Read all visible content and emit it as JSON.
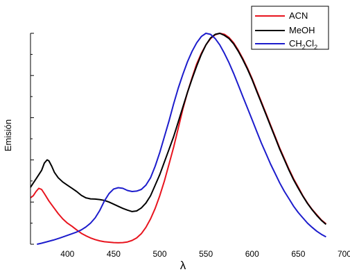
{
  "chart_data": {
    "type": "line",
    "xlabel": "λ",
    "ylabel": "Emisión",
    "xlim": [
      360,
      700
    ],
    "ylim": [
      0,
      1
    ],
    "x_ticks": [
      400,
      450,
      500,
      550,
      600,
      650,
      700
    ],
    "y_tick_labels_shown": false,
    "grid": false,
    "legend": "top-right",
    "series": [
      {
        "name": "ACN",
        "color": "#e8141e",
        "points": [
          [
            360,
            0.22
          ],
          [
            363,
            0.23
          ],
          [
            366,
            0.25
          ],
          [
            369,
            0.265
          ],
          [
            372,
            0.26
          ],
          [
            375,
            0.24
          ],
          [
            380,
            0.205
          ],
          [
            385,
            0.175
          ],
          [
            390,
            0.145
          ],
          [
            395,
            0.12
          ],
          [
            400,
            0.1
          ],
          [
            405,
            0.085
          ],
          [
            410,
            0.068
          ],
          [
            415,
            0.052
          ],
          [
            420,
            0.04
          ],
          [
            425,
            0.03
          ],
          [
            430,
            0.022
          ],
          [
            435,
            0.016
          ],
          [
            440,
            0.012
          ],
          [
            445,
            0.01
          ],
          [
            450,
            0.008
          ],
          [
            455,
            0.007
          ],
          [
            460,
            0.008
          ],
          [
            465,
            0.011
          ],
          [
            470,
            0.018
          ],
          [
            475,
            0.03
          ],
          [
            480,
            0.05
          ],
          [
            485,
            0.08
          ],
          [
            490,
            0.12
          ],
          [
            495,
            0.17
          ],
          [
            500,
            0.23
          ],
          [
            505,
            0.3
          ],
          [
            510,
            0.38
          ],
          [
            515,
            0.46
          ],
          [
            520,
            0.55
          ],
          [
            525,
            0.64
          ],
          [
            530,
            0.72
          ],
          [
            535,
            0.79
          ],
          [
            540,
            0.855
          ],
          [
            545,
            0.905
          ],
          [
            550,
            0.945
          ],
          [
            555,
            0.975
          ],
          [
            560,
            0.993
          ],
          [
            565,
            1.0
          ],
          [
            570,
            0.995
          ],
          [
            575,
            0.98
          ],
          [
            580,
            0.955
          ],
          [
            585,
            0.92
          ],
          [
            590,
            0.88
          ],
          [
            595,
            0.835
          ],
          [
            600,
            0.785
          ],
          [
            605,
            0.73
          ],
          [
            610,
            0.675
          ],
          [
            615,
            0.62
          ],
          [
            620,
            0.565
          ],
          [
            625,
            0.51
          ],
          [
            630,
            0.455
          ],
          [
            635,
            0.405
          ],
          [
            640,
            0.355
          ],
          [
            645,
            0.31
          ],
          [
            650,
            0.27
          ],
          [
            655,
            0.23
          ],
          [
            660,
            0.195
          ],
          [
            665,
            0.165
          ],
          [
            670,
            0.14
          ],
          [
            675,
            0.115
          ],
          [
            680,
            0.097
          ]
        ]
      },
      {
        "name": "MeOH",
        "color": "#000000",
        "points": [
          [
            360,
            0.27
          ],
          [
            363,
            0.29
          ],
          [
            366,
            0.31
          ],
          [
            369,
            0.33
          ],
          [
            372,
            0.35
          ],
          [
            375,
            0.385
          ],
          [
            378,
            0.4
          ],
          [
            380,
            0.395
          ],
          [
            383,
            0.37
          ],
          [
            386,
            0.34
          ],
          [
            390,
            0.315
          ],
          [
            395,
            0.295
          ],
          [
            400,
            0.28
          ],
          [
            405,
            0.265
          ],
          [
            410,
            0.25
          ],
          [
            415,
            0.232
          ],
          [
            420,
            0.22
          ],
          [
            425,
            0.215
          ],
          [
            430,
            0.214
          ],
          [
            435,
            0.212
          ],
          [
            440,
            0.208
          ],
          [
            445,
            0.2
          ],
          [
            450,
            0.19
          ],
          [
            455,
            0.18
          ],
          [
            460,
            0.17
          ],
          [
            465,
            0.162
          ],
          [
            470,
            0.155
          ],
          [
            475,
            0.158
          ],
          [
            480,
            0.172
          ],
          [
            485,
            0.195
          ],
          [
            490,
            0.23
          ],
          [
            495,
            0.28
          ],
          [
            500,
            0.33
          ],
          [
            505,
            0.39
          ],
          [
            510,
            0.45
          ],
          [
            515,
            0.51
          ],
          [
            520,
            0.58
          ],
          [
            525,
            0.65
          ],
          [
            530,
            0.72
          ],
          [
            535,
            0.785
          ],
          [
            540,
            0.845
          ],
          [
            545,
            0.9
          ],
          [
            550,
            0.945
          ],
          [
            555,
            0.978
          ],
          [
            560,
            0.995
          ],
          [
            565,
            1.0
          ],
          [
            570,
            0.99
          ],
          [
            575,
            0.975
          ],
          [
            580,
            0.95
          ],
          [
            585,
            0.915
          ],
          [
            590,
            0.875
          ],
          [
            595,
            0.83
          ],
          [
            600,
            0.78
          ],
          [
            605,
            0.725
          ],
          [
            610,
            0.67
          ],
          [
            615,
            0.615
          ],
          [
            620,
            0.56
          ],
          [
            625,
            0.505
          ],
          [
            630,
            0.45
          ],
          [
            635,
            0.4
          ],
          [
            640,
            0.35
          ],
          [
            645,
            0.305
          ],
          [
            650,
            0.265
          ],
          [
            655,
            0.228
          ],
          [
            660,
            0.193
          ],
          [
            665,
            0.163
          ],
          [
            670,
            0.137
          ],
          [
            675,
            0.113
          ],
          [
            680,
            0.094
          ]
        ]
      },
      {
        "name": "CH2Cl2",
        "label_parts": [
          "CH",
          "2",
          "Cl",
          "2"
        ],
        "color": "#1c1ccc",
        "points": [
          [
            367,
            0.0
          ],
          [
            372,
            0.005
          ],
          [
            378,
            0.012
          ],
          [
            385,
            0.02
          ],
          [
            392,
            0.03
          ],
          [
            400,
            0.042
          ],
          [
            405,
            0.05
          ],
          [
            410,
            0.058
          ],
          [
            415,
            0.068
          ],
          [
            420,
            0.082
          ],
          [
            425,
            0.1
          ],
          [
            430,
            0.125
          ],
          [
            435,
            0.16
          ],
          [
            440,
            0.205
          ],
          [
            445,
            0.24
          ],
          [
            450,
            0.262
          ],
          [
            455,
            0.268
          ],
          [
            460,
            0.265
          ],
          [
            465,
            0.255
          ],
          [
            470,
            0.25
          ],
          [
            475,
            0.252
          ],
          [
            480,
            0.26
          ],
          [
            485,
            0.28
          ],
          [
            490,
            0.315
          ],
          [
            495,
            0.37
          ],
          [
            500,
            0.435
          ],
          [
            505,
            0.51
          ],
          [
            510,
            0.585
          ],
          [
            515,
            0.665
          ],
          [
            520,
            0.74
          ],
          [
            525,
            0.805
          ],
          [
            530,
            0.865
          ],
          [
            535,
            0.915
          ],
          [
            540,
            0.955
          ],
          [
            545,
            0.985
          ],
          [
            550,
            1.0
          ],
          [
            555,
            0.995
          ],
          [
            560,
            0.975
          ],
          [
            565,
            0.945
          ],
          [
            570,
            0.905
          ],
          [
            575,
            0.86
          ],
          [
            580,
            0.81
          ],
          [
            585,
            0.755
          ],
          [
            590,
            0.7
          ],
          [
            595,
            0.645
          ],
          [
            600,
            0.59
          ],
          [
            605,
            0.535
          ],
          [
            610,
            0.48
          ],
          [
            615,
            0.43
          ],
          [
            620,
            0.38
          ],
          [
            625,
            0.335
          ],
          [
            630,
            0.29
          ],
          [
            635,
            0.25
          ],
          [
            640,
            0.215
          ],
          [
            645,
            0.18
          ],
          [
            650,
            0.15
          ],
          [
            655,
            0.125
          ],
          [
            660,
            0.1
          ],
          [
            665,
            0.08
          ],
          [
            670,
            0.062
          ],
          [
            675,
            0.047
          ],
          [
            680,
            0.035
          ]
        ]
      }
    ]
  }
}
